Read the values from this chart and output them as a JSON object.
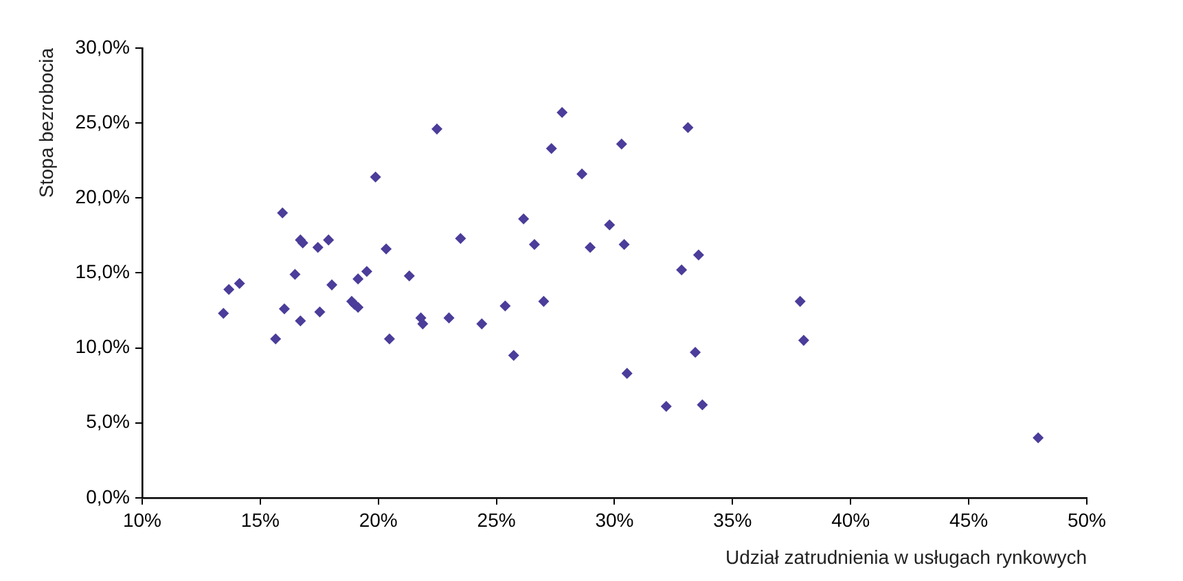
{
  "chart_data": {
    "type": "scatter",
    "xlabel": "Udział zatrudnienia w usługach rynkowych",
    "ylabel": "Stopa bezrobocia",
    "xlim": [
      10,
      50
    ],
    "xticks": [
      {
        "value": 10,
        "label": "10%"
      },
      {
        "value": 15,
        "label": "15%"
      },
      {
        "value": 20,
        "label": "20%"
      },
      {
        "value": 25,
        "label": "25%"
      },
      {
        "value": 30,
        "label": "30%"
      },
      {
        "value": 35,
        "label": "35%"
      },
      {
        "value": 40,
        "label": "40%"
      },
      {
        "value": 45,
        "label": "45%"
      },
      {
        "value": 50,
        "label": "50%"
      }
    ],
    "ylim": [
      0,
      30
    ],
    "yticks": [
      {
        "value": 0,
        "label": "0,0%"
      },
      {
        "value": 5,
        "label": "5,0%"
      },
      {
        "value": 10,
        "label": "10,0%"
      },
      {
        "value": 15,
        "label": "15,0%"
      },
      {
        "value": 20,
        "label": "20,0%"
      },
      {
        "value": 25,
        "label": "25,0%"
      },
      {
        "value": 30,
        "label": "30,0%"
      }
    ],
    "grid": false,
    "legend": false,
    "marker": "diamond",
    "series": [
      {
        "color": "#4b3d9a",
        "x": [
          13.44,
          13.67,
          14.12,
          15.65,
          15.94,
          16.02,
          16.47,
          16.7,
          16.7,
          16.8,
          17.44,
          17.52,
          17.89,
          18.03,
          18.87,
          18.99,
          19.14,
          19.14,
          19.51,
          19.88,
          20.33,
          20.47,
          21.31,
          21.8,
          21.88,
          22.48,
          22.99,
          23.48,
          24.38,
          25.37,
          25.73,
          26.15,
          26.61,
          27.0,
          27.33,
          27.78,
          28.62,
          28.97,
          29.79,
          30.3,
          30.41,
          30.53,
          32.19,
          32.84,
          33.11,
          33.42,
          33.56,
          33.72,
          37.86,
          38.01,
          47.94
        ],
        "values": [
          12.3,
          13.9,
          14.3,
          10.6,
          19.0,
          12.6,
          14.9,
          11.8,
          17.2,
          17.0,
          16.7,
          12.4,
          17.2,
          14.2,
          13.1,
          12.9,
          12.7,
          14.6,
          15.1,
          21.4,
          16.6,
          10.6,
          14.8,
          12.0,
          11.6,
          24.6,
          12.0,
          17.3,
          11.6,
          12.8,
          9.5,
          18.6,
          16.9,
          13.1,
          23.3,
          25.7,
          21.6,
          16.7,
          18.2,
          23.6,
          16.9,
          8.3,
          6.1,
          15.2,
          24.7,
          9.7,
          16.2,
          6.2,
          13.1,
          10.5,
          4.0
        ]
      }
    ]
  }
}
